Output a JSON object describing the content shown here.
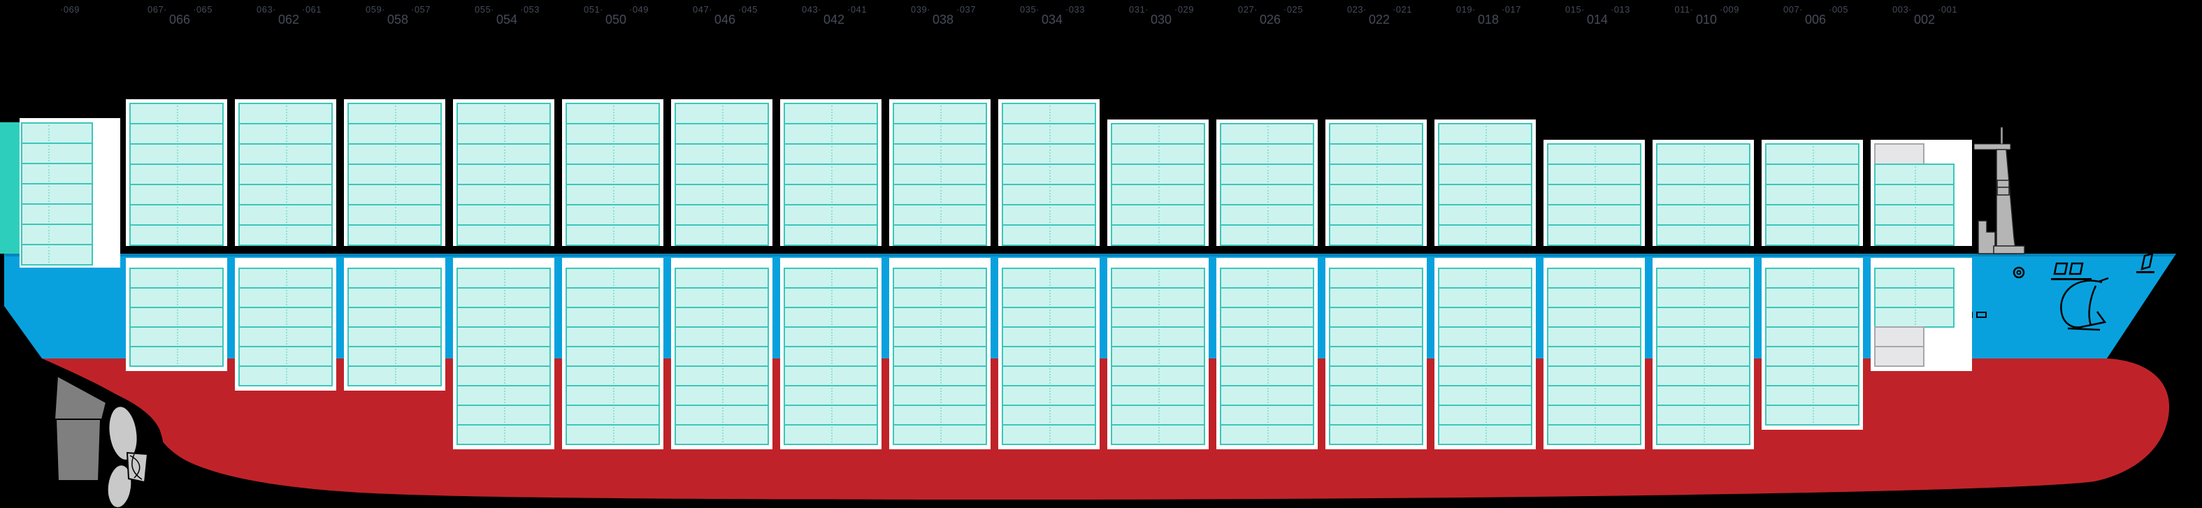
{
  "title": "vessel-side-profile-stowage-plan",
  "colors": {
    "background": "#000000",
    "container_fill": "#cdf3ee",
    "container_border": "#3cc6ba",
    "container_divider": "#8fe0d6",
    "gray_fill": "#e6e6e9",
    "gray_border": "#a6a6ad",
    "panel_white": "#ffffff",
    "hull_blue": "#09a1dd",
    "hull_blue_top": "#0784bb",
    "hull_red": "#bf2329",
    "stern_teal": "#2dcfbc",
    "stern_dark": "#11505f",
    "rudder_gray": "#7f7f7f",
    "propeller_gray": "#c9c9c9",
    "mast_gray": "#b5b5b5",
    "label_color": "#454b59",
    "outline": "#1a1a1a"
  },
  "stern_bay": {
    "slot_label": "·069",
    "tiers_above": 7
  },
  "bays": [
    {
      "bay": "066",
      "slot_fore": "067·",
      "slot_aft": "·065",
      "tiers_above": 7,
      "tiers_below": 5
    },
    {
      "bay": "062",
      "slot_fore": "063·",
      "slot_aft": "·061",
      "tiers_above": 7,
      "tiers_below": 6
    },
    {
      "bay": "058",
      "slot_fore": "059·",
      "slot_aft": "·057",
      "tiers_above": 7,
      "tiers_below": 6
    },
    {
      "bay": "054",
      "slot_fore": "055·",
      "slot_aft": "·053",
      "tiers_above": 7,
      "tiers_below": 9
    },
    {
      "bay": "050",
      "slot_fore": "051·",
      "slot_aft": "·049",
      "tiers_above": 7,
      "tiers_below": 9
    },
    {
      "bay": "046",
      "slot_fore": "047·",
      "slot_aft": "·045",
      "tiers_above": 7,
      "tiers_below": 9
    },
    {
      "bay": "042",
      "slot_fore": "043·",
      "slot_aft": "·041",
      "tiers_above": 7,
      "tiers_below": 9
    },
    {
      "bay": "038",
      "slot_fore": "039·",
      "slot_aft": "·037",
      "tiers_above": 7,
      "tiers_below": 9
    },
    {
      "bay": "034",
      "slot_fore": "035·",
      "slot_aft": "·033",
      "tiers_above": 7,
      "tiers_below": 9
    },
    {
      "bay": "030",
      "slot_fore": "031·",
      "slot_aft": "·029",
      "tiers_above": 6,
      "tiers_below": 9
    },
    {
      "bay": "026",
      "slot_fore": "027·",
      "slot_aft": "·025",
      "tiers_above": 6,
      "tiers_below": 9
    },
    {
      "bay": "022",
      "slot_fore": "023·",
      "slot_aft": "·021",
      "tiers_above": 6,
      "tiers_below": 9
    },
    {
      "bay": "018",
      "slot_fore": "019·",
      "slot_aft": "·017",
      "tiers_above": 6,
      "tiers_below": 9
    },
    {
      "bay": "014",
      "slot_fore": "015·",
      "slot_aft": "·013",
      "tiers_above": 5,
      "tiers_below": 9
    },
    {
      "bay": "010",
      "slot_fore": "011·",
      "slot_aft": "·009",
      "tiers_above": 5,
      "tiers_below": 9
    },
    {
      "bay": "006",
      "slot_fore": "007·",
      "slot_aft": "·005",
      "tiers_above": 5,
      "tiers_below": 8
    },
    {
      "bay": "002",
      "slot_fore": "003·",
      "slot_aft": "·001",
      "tiers_above": 5,
      "tiers_below": 5,
      "above_top_gray_half": true,
      "below_cyan_rows": 3,
      "below_gray_half_rows": 2,
      "narrow_rows": true
    }
  ]
}
